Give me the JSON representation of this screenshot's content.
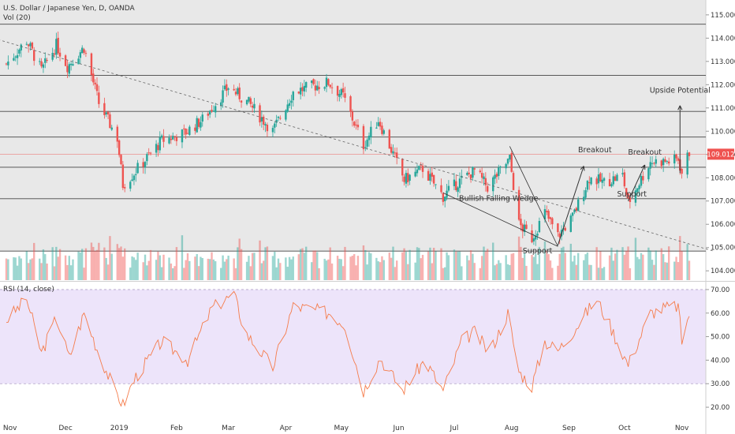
{
  "header": {
    "symbol": "U.S. Dollar / Japanese Yen, D, OANDA",
    "volume_label": "Vol (20)",
    "rsi_label": "RSI (14, close)",
    "price_badge": "109.012"
  },
  "colors": {
    "up": "#26a69a",
    "down": "#ef5350",
    "rsi_line": "#f57c4b",
    "rsi_band": "#ede4fa",
    "current_price": "#ef5350"
  },
  "chart_data": [
    {
      "type": "candlestick",
      "title": "U.S. Dollar / Japanese Yen, D, OANDA",
      "y_ticks": [
        "104.000",
        "105.000",
        "106.000",
        "107.000",
        "108.000",
        "109.000",
        "110.000",
        "111.000",
        "112.000",
        "113.000",
        "114.000",
        "115.000"
      ],
      "ylim": [
        103.6,
        115.3
      ],
      "x_ticks": [
        "Nov",
        "Dec",
        "2019",
        "Feb",
        "Mar",
        "Apr",
        "May",
        "Jun",
        "Jul",
        "Aug",
        "Sep",
        "Oct",
        "Nov"
      ],
      "horizontal_levels": [
        114.6,
        112.4,
        110.85,
        109.75,
        108.45,
        107.1,
        104.85
      ],
      "current_price": 109.012,
      "close_anchors": [
        {
          "date": "2018-11-01",
          "close": 112.9
        },
        {
          "date": "2018-11-12",
          "close": 113.9
        },
        {
          "date": "2018-11-20",
          "close": 112.6
        },
        {
          "date": "2018-11-28",
          "close": 113.7
        },
        {
          "date": "2018-12-04",
          "close": 112.8
        },
        {
          "date": "2018-12-13",
          "close": 113.6
        },
        {
          "date": "2018-12-21",
          "close": 111.2
        },
        {
          "date": "2018-12-31",
          "close": 109.7
        },
        {
          "date": "2019-01-03",
          "close": 107.7
        },
        {
          "date": "2019-01-10",
          "close": 108.3
        },
        {
          "date": "2019-01-24",
          "close": 109.6
        },
        {
          "date": "2019-02-05",
          "close": 109.9
        },
        {
          "date": "2019-02-15",
          "close": 110.5
        },
        {
          "date": "2019-03-01",
          "close": 111.9
        },
        {
          "date": "2019-03-12",
          "close": 111.2
        },
        {
          "date": "2019-03-25",
          "close": 110.0
        },
        {
          "date": "2019-04-05",
          "close": 111.7
        },
        {
          "date": "2019-04-24",
          "close": 112.1
        },
        {
          "date": "2019-05-02",
          "close": 111.5
        },
        {
          "date": "2019-05-13",
          "close": 109.4
        },
        {
          "date": "2019-05-21",
          "close": 110.5
        },
        {
          "date": "2019-06-04",
          "close": 107.9
        },
        {
          "date": "2019-06-14",
          "close": 108.4
        },
        {
          "date": "2019-06-25",
          "close": 107.2
        },
        {
          "date": "2019-07-03",
          "close": 107.8
        },
        {
          "date": "2019-07-12",
          "close": 108.3
        },
        {
          "date": "2019-07-19",
          "close": 107.6
        },
        {
          "date": "2019-07-31",
          "close": 108.8
        },
        {
          "date": "2019-08-05",
          "close": 106.0
        },
        {
          "date": "2019-08-12",
          "close": 105.4
        },
        {
          "date": "2019-08-19",
          "close": 106.5
        },
        {
          "date": "2019-08-26",
          "close": 105.5
        },
        {
          "date": "2019-09-03",
          "close": 106.3
        },
        {
          "date": "2019-09-12",
          "close": 108.0
        },
        {
          "date": "2019-09-20",
          "close": 107.8
        },
        {
          "date": "2019-09-30",
          "close": 108.1
        },
        {
          "date": "2019-10-03",
          "close": 106.9
        },
        {
          "date": "2019-10-15",
          "close": 108.7
        },
        {
          "date": "2019-10-25",
          "close": 108.7
        },
        {
          "date": "2019-10-30",
          "close": 108.8
        },
        {
          "date": "2019-11-01",
          "close": 108.2
        },
        {
          "date": "2019-11-05",
          "close": 109.1
        }
      ],
      "annotations": [
        {
          "text": "Breakout",
          "date": "2019-09-15",
          "price": 109.1
        },
        {
          "text": "Breakout",
          "date": "2019-10-12",
          "price": 109.0
        },
        {
          "text": "Upside Potential",
          "date": "2019-10-31",
          "price": 111.65
        },
        {
          "text": "Bullish Falling Wedge",
          "date": "2019-07-25",
          "price": 107.0
        },
        {
          "text": "Support",
          "date": "2019-10-05",
          "price": 107.2
        },
        {
          "text": "Support",
          "date": "2019-08-15",
          "price": 104.75
        }
      ],
      "trendline": {
        "from": {
          "date": "2018-10-25",
          "price": 114.0
        },
        "to": {
          "date": "2019-11-18",
          "price": 104.85
        }
      },
      "wedge": {
        "apex": {
          "date": "2019-08-26",
          "price": 105.05
        },
        "upper": {
          "date": "2019-07-31",
          "price": 109.35
        },
        "lower": {
          "date": "2019-06-25",
          "price": 107.35
        }
      }
    },
    {
      "type": "bar",
      "title": "Vol (20)"
    },
    {
      "type": "line",
      "title": "RSI (14, close)",
      "y_ticks": [
        "20.00",
        "30.00",
        "40.00",
        "50.00",
        "60.00",
        "70.00"
      ],
      "ylim": [
        16,
        73
      ],
      "band": [
        30,
        70
      ],
      "rsi_anchors": [
        {
          "date": "2018-11-01",
          "rsi": 57
        },
        {
          "date": "2018-11-12",
          "rsi": 66
        },
        {
          "date": "2018-11-20",
          "rsi": 43
        },
        {
          "date": "2018-11-28",
          "rsi": 58
        },
        {
          "date": "2018-12-05",
          "rsi": 41
        },
        {
          "date": "2018-12-13",
          "rsi": 60
        },
        {
          "date": "2018-12-20",
          "rsi": 45
        },
        {
          "date": "2018-12-28",
          "rsi": 30
        },
        {
          "date": "2019-01-03",
          "rsi": 21
        },
        {
          "date": "2019-01-10",
          "rsi": 33
        },
        {
          "date": "2019-01-24",
          "rsi": 48
        },
        {
          "date": "2019-02-07",
          "rsi": 40
        },
        {
          "date": "2019-02-20",
          "rsi": 62
        },
        {
          "date": "2019-03-04",
          "rsi": 68
        },
        {
          "date": "2019-03-10",
          "rsi": 52
        },
        {
          "date": "2019-03-25",
          "rsi": 37
        },
        {
          "date": "2019-04-05",
          "rsi": 63
        },
        {
          "date": "2019-04-25",
          "rsi": 60
        },
        {
          "date": "2019-05-03",
          "rsi": 55
        },
        {
          "date": "2019-05-13",
          "rsi": 27
        },
        {
          "date": "2019-05-22",
          "rsi": 41
        },
        {
          "date": "2019-06-03",
          "rsi": 27
        },
        {
          "date": "2019-06-15",
          "rsi": 40
        },
        {
          "date": "2019-06-25",
          "rsi": 27
        },
        {
          "date": "2019-07-05",
          "rsi": 48
        },
        {
          "date": "2019-07-12",
          "rsi": 52
        },
        {
          "date": "2019-07-20",
          "rsi": 43
        },
        {
          "date": "2019-07-30",
          "rsi": 60
        },
        {
          "date": "2019-08-05",
          "rsi": 35
        },
        {
          "date": "2019-08-12",
          "rsi": 29
        },
        {
          "date": "2019-08-19",
          "rsi": 48
        },
        {
          "date": "2019-08-26",
          "rsi": 44
        },
        {
          "date": "2019-09-03",
          "rsi": 52
        },
        {
          "date": "2019-09-12",
          "rsi": 62
        },
        {
          "date": "2019-09-16",
          "rsi": 66
        },
        {
          "date": "2019-09-23",
          "rsi": 55
        },
        {
          "date": "2019-10-03",
          "rsi": 38
        },
        {
          "date": "2019-10-15",
          "rsi": 60
        },
        {
          "date": "2019-10-22",
          "rsi": 62
        },
        {
          "date": "2019-10-30",
          "rsi": 63
        },
        {
          "date": "2019-11-01",
          "rsi": 48
        },
        {
          "date": "2019-11-05",
          "rsi": 60
        }
      ]
    }
  ]
}
